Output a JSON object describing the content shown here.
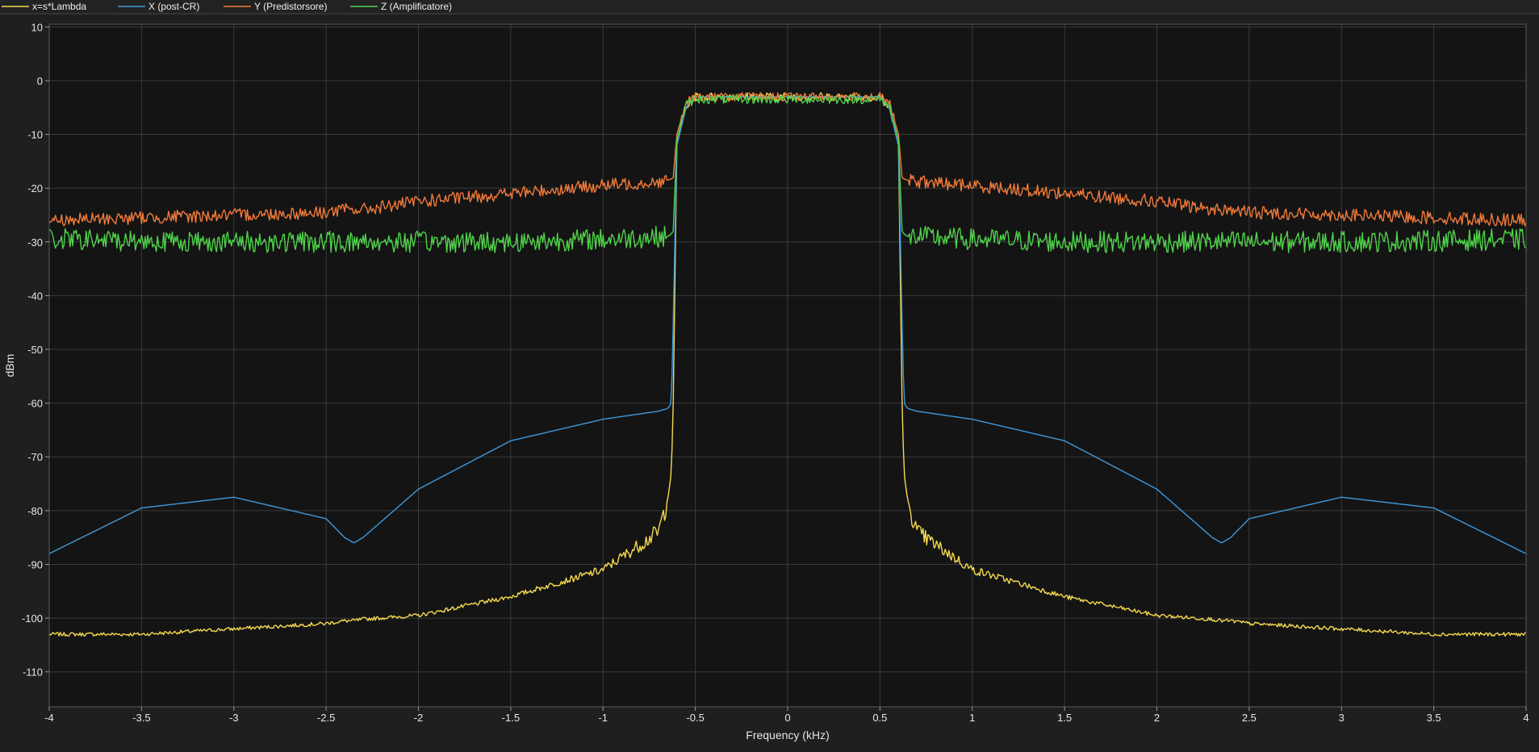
{
  "chart_data": {
    "type": "line",
    "title": "",
    "xlabel": "Frequency (kHz)",
    "ylabel": "dBm",
    "xlim": [
      -4,
      4
    ],
    "ylim": [
      -116.5,
      10.5
    ],
    "x_ticks": [
      -4,
      -3.5,
      -3,
      -2.5,
      -2,
      -1.5,
      -1,
      -0.5,
      0,
      0.5,
      1,
      1.5,
      2,
      2.5,
      3,
      3.5,
      4
    ],
    "x_tick_labels": [
      "-4",
      "-3.5",
      "-3",
      "-2.5",
      "-2",
      "-1.5",
      "-1",
      "-0.5",
      "0",
      "0.5",
      "1",
      "1.5",
      "2",
      "2.5",
      "3",
      "3.5",
      "4"
    ],
    "y_ticks": [
      10,
      0,
      -10,
      -20,
      -30,
      -40,
      -50,
      -60,
      -70,
      -80,
      -90,
      -100,
      -110
    ],
    "y_tick_labels": [
      "10",
      "0",
      "-10",
      "-20",
      "-30",
      "-40",
      "-50",
      "-60",
      "-70",
      "-80",
      "-90",
      "-100",
      "-110"
    ],
    "grid": true,
    "legend_position": "top-left",
    "background_color": "#141414",
    "grid_color": "#3a3a3a",
    "axis_text_color": "#e6e6e6",
    "x": [
      -4,
      -3.5,
      -3,
      -2.5,
      -2.4,
      -2.35,
      -2.3,
      -2,
      -1.5,
      -1,
      -0.7,
      -0.65,
      -0.63,
      -0.62,
      -0.6,
      -0.55,
      -0.5,
      -0.25,
      0,
      0.25,
      0.5,
      0.55,
      0.6,
      0.62,
      0.63,
      0.65,
      0.7,
      1,
      1.5,
      2,
      2.3,
      2.35,
      2.4,
      2.5,
      3,
      3.5,
      4
    ],
    "series": [
      {
        "name": "x=s*Lambda",
        "color": "#f5d94f",
        "values": [
          -103,
          -103,
          -102,
          -101,
          -100.5,
          -100.5,
          -100.2,
          -99.5,
          -96,
          -91,
          -84,
          -78,
          -73,
          -60,
          -12,
          -5,
          -3,
          -3,
          -3,
          -3,
          -3,
          -5,
          -12,
          -60,
          -73,
          -78,
          -84,
          -91,
          -96,
          -99.5,
          -100.2,
          -100.5,
          -100.5,
          -101,
          -102,
          -103,
          -103
        ]
      },
      {
        "name": "X (post-CR)",
        "color": "#3c9ae0",
        "values": [
          -88,
          -79.5,
          -77.5,
          -81.5,
          -85,
          -86,
          -85,
          -76,
          -67,
          -63,
          -61.5,
          -61,
          -60,
          -45,
          -12,
          -5,
          -3,
          -3,
          -3,
          -3,
          -3,
          -5,
          -12,
          -45,
          -60,
          -61,
          -61.5,
          -63,
          -67,
          -76,
          -85,
          -86,
          -85,
          -81.5,
          -77.5,
          -79.5,
          -88
        ]
      },
      {
        "name": "Y (Predistorsore)",
        "color": "#f07a3a",
        "values": [
          -26,
          -25.5,
          -25,
          -24.5,
          -24,
          -24,
          -24,
          -22.5,
          -21,
          -19.5,
          -18.8,
          -18.5,
          -18.3,
          -18,
          -10,
          -4,
          -3,
          -3,
          -3,
          -3,
          -3,
          -4,
          -10,
          -18,
          -18.3,
          -18.5,
          -18.8,
          -19.5,
          -21,
          -22.5,
          -24,
          -24,
          -24,
          -24.5,
          -25,
          -25.5,
          -26
        ]
      },
      {
        "name": "Z (Amplificatore)",
        "color": "#4fd24a",
        "values": [
          -29.5,
          -29.8,
          -30,
          -30,
          -30,
          -30,
          -30,
          -30,
          -30,
          -29.5,
          -29,
          -29,
          -28.5,
          -28,
          -11,
          -4.5,
          -3.5,
          -3.5,
          -3.5,
          -3.5,
          -3.5,
          -4.5,
          -11,
          -28,
          -28.5,
          -29,
          -29,
          -29.5,
          -30,
          -30,
          -30,
          -30,
          -30,
          -30,
          -30,
          -29.8,
          -29.5
        ]
      }
    ]
  }
}
